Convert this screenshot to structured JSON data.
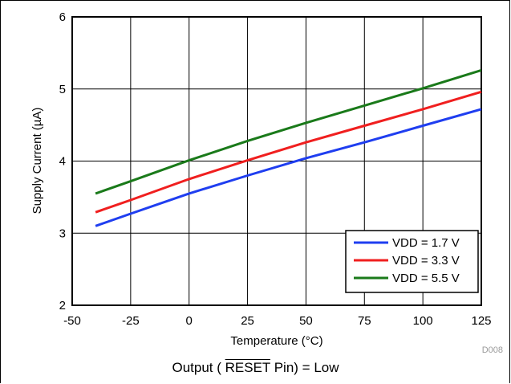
{
  "chart_data": {
    "type": "line",
    "title": "",
    "xlabel": "Temperature (°C)",
    "ylabel": "Supply Current (µA)",
    "xlim": [
      -50,
      125
    ],
    "ylim": [
      2,
      6
    ],
    "x_ticks": [
      "-50",
      "-25",
      "0",
      "25",
      "50",
      "75",
      "100",
      "125"
    ],
    "y_ticks": [
      "2",
      "3",
      "4",
      "5",
      "6"
    ],
    "grid": true,
    "legend_position": "bottom-right",
    "series": [
      {
        "name": "VDD = 1.7 V",
        "color": "#1f3ef0",
        "x": [
          -40,
          -25,
          0,
          25,
          50,
          75,
          100,
          125
        ],
        "y": [
          3.1,
          3.27,
          3.55,
          3.8,
          4.04,
          4.26,
          4.49,
          4.72
        ]
      },
      {
        "name": "VDD = 3.3 V",
        "color": "#f01f1f",
        "x": [
          -40,
          -25,
          0,
          25,
          50,
          75,
          100,
          125
        ],
        "y": [
          3.29,
          3.46,
          3.75,
          4.01,
          4.26,
          4.49,
          4.72,
          4.96
        ]
      },
      {
        "name": "VDD = 5.5 V",
        "color": "#1a7a1a",
        "x": [
          -40,
          -25,
          0,
          25,
          50,
          75,
          100,
          125
        ],
        "y": [
          3.55,
          3.72,
          4.01,
          4.28,
          4.53,
          4.77,
          5.01,
          5.26
        ]
      }
    ]
  },
  "figure_code": "D008",
  "caption": {
    "prefix": "Output ( ",
    "overlined": "RESET",
    "suffix": " Pin) = Low"
  }
}
